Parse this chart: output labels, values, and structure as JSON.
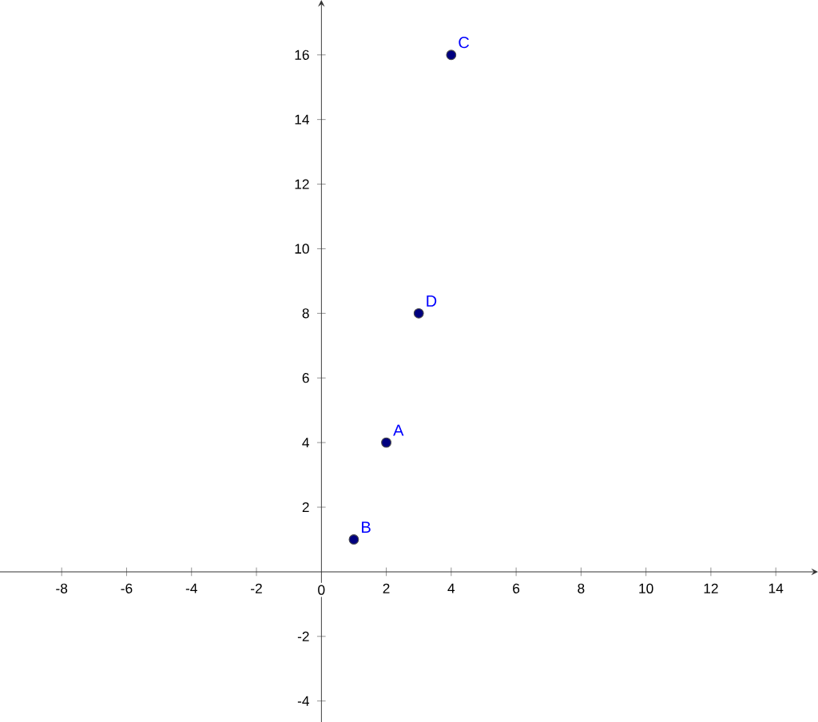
{
  "chart_data": {
    "type": "scatter",
    "x": [
      2,
      1,
      4,
      3
    ],
    "values": [
      4,
      1,
      16,
      8
    ],
    "color": "#00007f",
    "marker": "circle",
    "grid": false,
    "xlim": [
      -9.9,
      15.3
    ],
    "ylim": [
      -4.65,
      17.7
    ],
    "xticks": [
      -8,
      -6,
      -4,
      -2,
      0,
      2,
      4,
      6,
      8,
      10,
      12,
      14
    ],
    "yticks": [
      -4,
      -2,
      2,
      4,
      6,
      8,
      10,
      12,
      14,
      16
    ],
    "annotations": [
      {
        "text": "A",
        "x": 2,
        "y": 4
      },
      {
        "text": "B",
        "x": 1,
        "y": 1
      },
      {
        "text": "C",
        "x": 4,
        "y": 16
      },
      {
        "text": "D",
        "x": 3,
        "y": 8
      }
    ]
  }
}
